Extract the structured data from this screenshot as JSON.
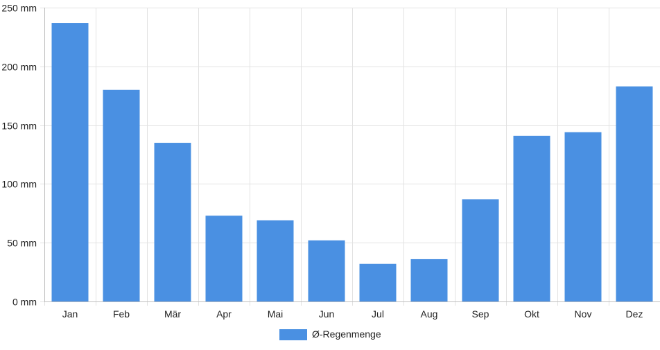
{
  "chart_data": {
    "type": "bar",
    "categories": [
      "Jan",
      "Feb",
      "Mär",
      "Apr",
      "Mai",
      "Jun",
      "Jul",
      "Aug",
      "Sep",
      "Okt",
      "Nov",
      "Dez"
    ],
    "series": [
      {
        "name": "Ø-Regenmenge",
        "values": [
          237,
          180,
          135,
          73,
          69,
          52,
          32,
          36,
          87,
          141,
          144,
          183
        ]
      }
    ],
    "y_ticks": [
      "0 mm",
      "50 mm",
      "100 mm",
      "150 mm",
      "200 mm",
      "250 mm"
    ],
    "ylim": [
      0,
      250
    ],
    "grid": true,
    "legend_position": "bottom",
    "bar_color": "#4a90e2",
    "grid_color": "#e2e2e2",
    "axis_color": "#bdbdbd"
  }
}
